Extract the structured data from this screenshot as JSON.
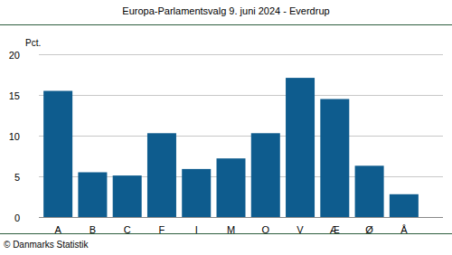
{
  "chart_data": {
    "type": "bar",
    "title": "Europa-Parlamentsvalg 9. juni 2024 - Everdrup",
    "y_label": "Pct.",
    "annotations": [
      "© Danmarks Statistik"
    ],
    "categories": [
      "A",
      "B",
      "C",
      "F",
      "I",
      "M",
      "O",
      "V",
      "Æ",
      "Ø",
      "Å"
    ],
    "values": [
      15.5,
      5.5,
      5.1,
      10.3,
      5.9,
      7.2,
      10.3,
      17.1,
      14.5,
      6.3,
      2.8
    ],
    "color": "#0e5c8e",
    "ylim": [
      0,
      20
    ],
    "yticks": [
      0,
      5,
      10,
      15,
      20
    ],
    "grid": true
  }
}
